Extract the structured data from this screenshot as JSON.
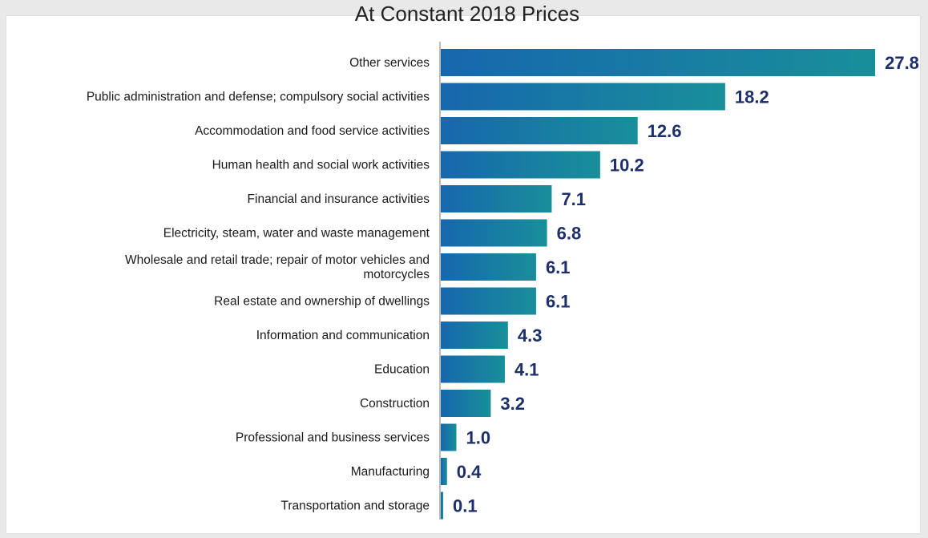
{
  "chart_data": {
    "type": "bar",
    "orientation": "horizontal",
    "title": "At Constant 2018 Prices",
    "categories": [
      [
        "Other services"
      ],
      [
        "Public administration and defense; compulsory social activities"
      ],
      [
        "Accommodation and food service activities"
      ],
      [
        "Human health and social work activities"
      ],
      [
        "Financial and insurance activities"
      ],
      [
        "Electricity, steam, water and waste management"
      ],
      [
        "Wholesale and retail trade; repair of motor vehicles and",
        "motorcycles"
      ],
      [
        "Real estate and ownership of dwellings"
      ],
      [
        "Information and communication"
      ],
      [
        "Education"
      ],
      [
        "Construction"
      ],
      [
        "Professional and business services"
      ],
      [
        "Manufacturing"
      ],
      [
        "Transportation and storage"
      ]
    ],
    "values": [
      27.8,
      18.2,
      12.6,
      10.2,
      7.1,
      6.8,
      6.1,
      6.1,
      4.3,
      4.1,
      3.2,
      1.0,
      0.4,
      0.1
    ],
    "value_labels": [
      "27.8",
      "18.2",
      "12.6",
      "10.2",
      "7.1",
      "6.8",
      "6.1",
      "6.1",
      "4.3",
      "4.1",
      "3.2",
      "1.0",
      "0.4",
      "0.1"
    ],
    "xlim": [
      0,
      28
    ],
    "grid": false,
    "legend": "none",
    "colors": {
      "bar_start": "#1767ad",
      "bar_end": "#188f9a",
      "value_label": "#1d2f6b",
      "axis": "#7a7a7a"
    }
  }
}
